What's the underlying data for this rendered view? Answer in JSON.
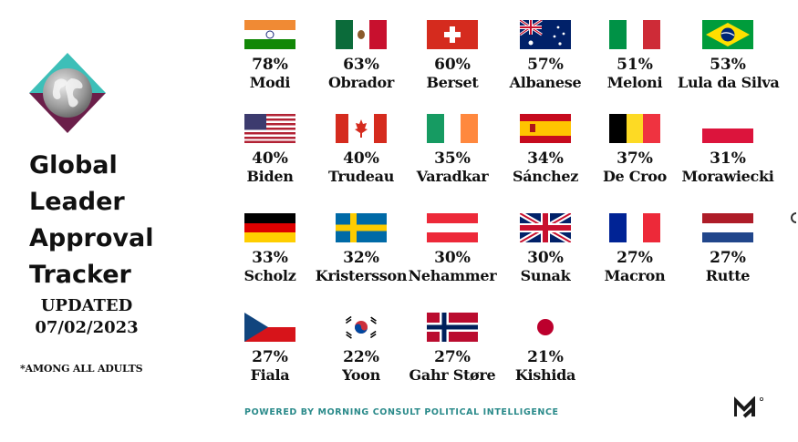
{
  "title": {
    "lines": [
      "Global",
      "Leader",
      "Approval",
      "Tracker"
    ]
  },
  "updated": {
    "label": "UPDATED",
    "date": "07/02/2023"
  },
  "footnote": "*AMONG ALL ADULTS",
  "footer": {
    "powered_by": "POWERED BY MORNING CONSULT POLITICAL INTELLIGENCE"
  },
  "leaders": [
    {
      "name": "Modi",
      "approval": "78%",
      "flag": "india-flag-icon"
    },
    {
      "name": "Obrador",
      "approval": "63%",
      "flag": "mexico-flag-icon"
    },
    {
      "name": "Berset",
      "approval": "60%",
      "flag": "switzerland-flag-icon"
    },
    {
      "name": "Albanese",
      "approval": "57%",
      "flag": "australia-flag-icon"
    },
    {
      "name": "Meloni",
      "approval": "51%",
      "flag": "italy-flag-icon"
    },
    {
      "name": "Lula da Silva",
      "approval": "53%",
      "flag": "brazil-flag-icon"
    },
    {
      "name": "Biden",
      "approval": "40%",
      "flag": "usa-flag-icon"
    },
    {
      "name": "Trudeau",
      "approval": "40%",
      "flag": "canada-flag-icon"
    },
    {
      "name": "Varadkar",
      "approval": "35%",
      "flag": "ireland-flag-icon"
    },
    {
      "name": "Sánchez",
      "approval": "34%",
      "flag": "spain-flag-icon"
    },
    {
      "name": "De Croo",
      "approval": "37%",
      "flag": "belgium-flag-icon"
    },
    {
      "name": "Morawiecki",
      "approval": "31%",
      "flag": "poland-flag-icon"
    },
    {
      "name": "Scholz",
      "approval": "33%",
      "flag": "germany-flag-icon"
    },
    {
      "name": "Kristersson",
      "approval": "32%",
      "flag": "sweden-flag-icon"
    },
    {
      "name": "Nehammer",
      "approval": "30%",
      "flag": "austria-flag-icon"
    },
    {
      "name": "Sunak",
      "approval": "30%",
      "flag": "uk-flag-icon"
    },
    {
      "name": "Macron",
      "approval": "27%",
      "flag": "france-flag-icon"
    },
    {
      "name": "Rutte",
      "approval": "27%",
      "flag": "netherlands-flag-icon"
    },
    {
      "name": "Fiala",
      "approval": "27%",
      "flag": "czechia-flag-icon"
    },
    {
      "name": "Yoon",
      "approval": "22%",
      "flag": "south-korea-flag-icon"
    },
    {
      "name": "Gahr Støre",
      "approval": "27%",
      "flag": "norway-flag-icon"
    },
    {
      "name": "Kishida",
      "approval": "21%",
      "flag": "japan-flag-icon"
    }
  ],
  "colors": {
    "footer_text": "#2a8a8a",
    "logo_teal": "#3dbfb8",
    "logo_plum": "#6b1f4a"
  }
}
